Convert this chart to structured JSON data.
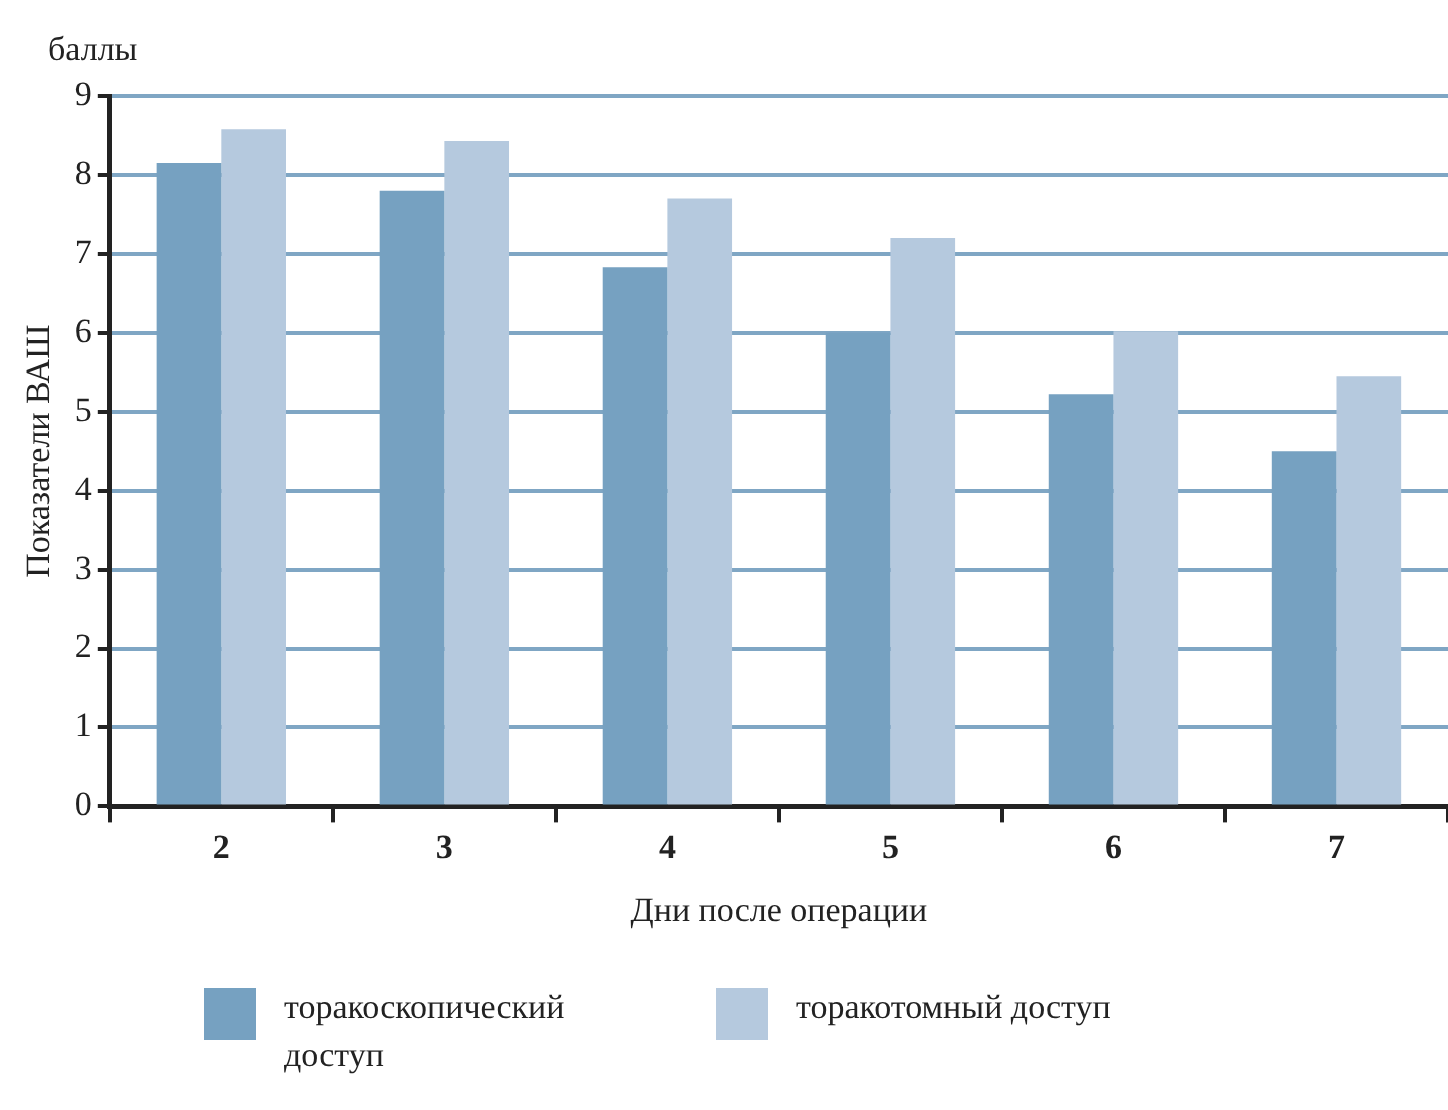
{
  "chart_data": {
    "type": "bar",
    "xlabel": "Дни после операции",
    "ylabel": "Показатели ВАШ",
    "annotations": [
      "баллы"
    ],
    "categories": [
      "2",
      "3",
      "4",
      "5",
      "6",
      "7"
    ],
    "series": [
      {
        "name": "торакоскопический доступ",
        "color": "#76a1c1",
        "values": [
          8.15,
          7.8,
          6.83,
          6.0,
          5.22,
          4.5
        ]
      },
      {
        "name": "торакотомный доступ",
        "color": "#b5c9de",
        "values": [
          8.58,
          8.43,
          7.7,
          7.2,
          6.02,
          5.45
        ]
      }
    ],
    "ylim": [
      0,
      9
    ],
    "yticks": [
      0,
      1,
      2,
      3,
      4,
      5,
      6,
      7,
      8,
      9
    ],
    "grid": "y",
    "legend": "bottom"
  }
}
